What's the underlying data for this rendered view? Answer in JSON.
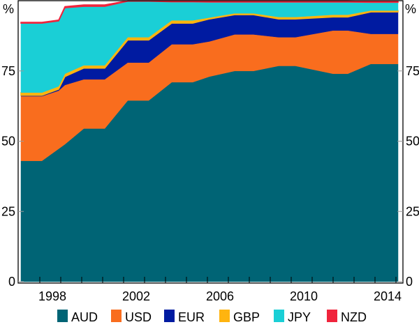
{
  "chart_data": {
    "type": "area",
    "stacked": true,
    "title": "",
    "xlabel": "",
    "ylabel": "%",
    "ylabel_right": "%",
    "ylim": [
      0,
      100
    ],
    "yticks": [
      "0",
      "25",
      "50",
      "75"
    ],
    "ytick_values": [
      0,
      25,
      50,
      75
    ],
    "xticks": [
      "1998",
      "2002",
      "2006",
      "2010",
      "2014"
    ],
    "xtick_values": [
      1998,
      2002,
      2006,
      2010,
      2014
    ],
    "xlim": [
      1996.5,
      2014.5
    ],
    "legend_position": "bottom",
    "x": [
      1996.5,
      1997.5,
      1998.3,
      1998.6,
      1999.5,
      2000.5,
      2001.6,
      2002.6,
      2003.7,
      2004.7,
      2005.5,
      2006.7,
      2007.6,
      2008.8,
      2009.6,
      2011.4,
      2012.1,
      2013.2,
      2014.5
    ],
    "series": [
      {
        "name": "AUD",
        "color": "#006475",
        "values": [
          43,
          43,
          47.3,
          48.9,
          54.5,
          54.5,
          64.5,
          64.5,
          71,
          71,
          73,
          75,
          75,
          76.8,
          76.8,
          74,
          74,
          77.5,
          77.5
        ]
      },
      {
        "name": "USD",
        "color": "#f96d1e",
        "values": [
          23,
          23,
          20.7,
          21.1,
          17.5,
          17.5,
          13.5,
          13.5,
          13.5,
          13.5,
          12.5,
          13,
          13,
          10.2,
          10.2,
          15.4,
          15.4,
          10.7,
          10.7
        ]
      },
      {
        "name": "EUR",
        "color": "#001ba1",
        "values": [
          0.3,
          0.3,
          0.5,
          3,
          4,
          4,
          8,
          8,
          7.5,
          7.5,
          8,
          7,
          7,
          6.5,
          6.5,
          4.8,
          4.8,
          7.8,
          7.8
        ]
      },
      {
        "name": "GBP",
        "color": "#ffb40f",
        "values": [
          1,
          1,
          1,
          1,
          1,
          1,
          1,
          1,
          1,
          1,
          0.5,
          0.5,
          0.5,
          0.7,
          0.7,
          0.8,
          0.8,
          0.5,
          0.5
        ]
      },
      {
        "name": "JPY",
        "color": "#1acfd6",
        "values": [
          24.7,
          24.7,
          23.3,
          23.5,
          21,
          21,
          12.8,
          12.8,
          6.6,
          6.6,
          5.5,
          4,
          4,
          5.3,
          5.3,
          4.5,
          4.5,
          2.9,
          2.9
        ]
      },
      {
        "name": "NZD",
        "color": "#f0243c",
        "values": [
          0.3,
          0.3,
          0.3,
          0.4,
          0.5,
          0.5,
          0.2,
          0.2,
          0.4,
          0.4,
          0.5,
          0.5,
          0.5,
          0.5,
          0.5,
          0.5,
          0.5,
          0.4,
          0.4
        ]
      }
    ]
  }
}
